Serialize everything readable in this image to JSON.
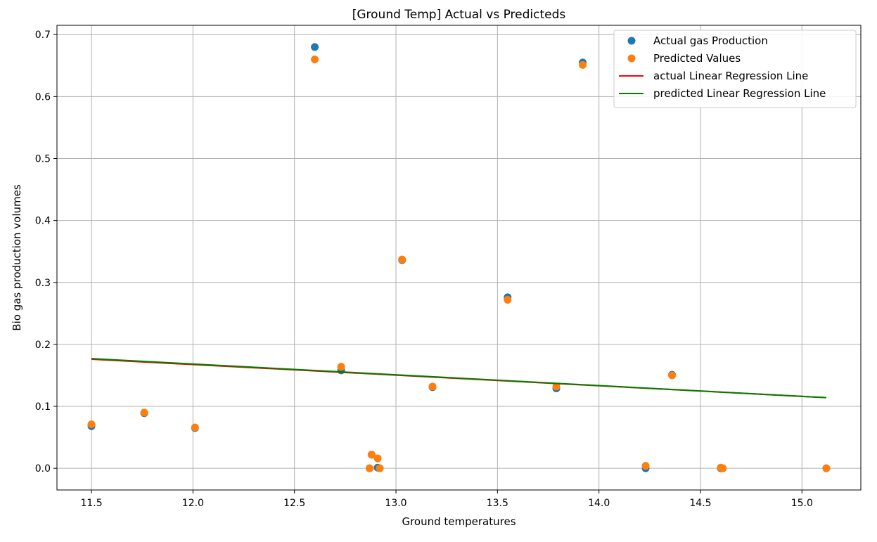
{
  "chart_data": {
    "type": "scatter",
    "title": "[Ground Temp] Actual vs Predicteds",
    "xlabel": "Ground temperatures",
    "ylabel": "Bio gas production volumes",
    "xlim": [
      11.33,
      15.29
    ],
    "ylim": [
      -0.035,
      0.715
    ],
    "xticks": [
      11.5,
      12.0,
      12.5,
      13.0,
      13.5,
      14.0,
      14.5,
      15.0
    ],
    "xtick_labels": [
      "11.5",
      "12.0",
      "12.5",
      "13.0",
      "13.5",
      "14.0",
      "14.5",
      "15.0"
    ],
    "yticks": [
      0.0,
      0.1,
      0.2,
      0.3,
      0.4,
      0.5,
      0.6,
      0.7
    ],
    "ytick_labels": [
      "0.0",
      "0.1",
      "0.2",
      "0.3",
      "0.4",
      "0.5",
      "0.6",
      "0.7"
    ],
    "grid": true,
    "legend_position": "top-right",
    "series": [
      {
        "name": "Actual gas Production",
        "kind": "scatter",
        "color": "#1f77b4",
        "points": [
          [
            11.5,
            0.068
          ],
          [
            11.76,
            0.089
          ],
          [
            12.01,
            0.065
          ],
          [
            12.6,
            0.68
          ],
          [
            12.73,
            0.158
          ],
          [
            12.87,
            0.0
          ],
          [
            12.88,
            0.022
          ],
          [
            12.91,
            0.001
          ],
          [
            12.92,
            0.0
          ],
          [
            13.03,
            0.336
          ],
          [
            13.18,
            0.131
          ],
          [
            13.55,
            0.276
          ],
          [
            13.79,
            0.129
          ],
          [
            13.92,
            0.655
          ],
          [
            14.23,
            0.0
          ],
          [
            14.36,
            0.151
          ],
          [
            14.6,
            0.0
          ],
          [
            14.61,
            0.0
          ],
          [
            15.12,
            0.0
          ]
        ]
      },
      {
        "name": "Predicted Values",
        "kind": "scatter",
        "color": "#ff7f0e",
        "points": [
          [
            11.5,
            0.071
          ],
          [
            11.76,
            0.09
          ],
          [
            12.01,
            0.066
          ],
          [
            12.6,
            0.66
          ],
          [
            12.73,
            0.164
          ],
          [
            12.87,
            0.0
          ],
          [
            12.88,
            0.022
          ],
          [
            12.91,
            0.016
          ],
          [
            12.92,
            0.0
          ],
          [
            13.03,
            0.337
          ],
          [
            13.18,
            0.132
          ],
          [
            13.55,
            0.272
          ],
          [
            13.79,
            0.132
          ],
          [
            13.92,
            0.651
          ],
          [
            14.23,
            0.004
          ],
          [
            14.36,
            0.15
          ],
          [
            14.6,
            0.001
          ],
          [
            14.61,
            0.0
          ],
          [
            15.12,
            0.0
          ]
        ]
      },
      {
        "name": "actual Linear Regression Line",
        "kind": "line",
        "color": "#ff0000",
        "points": [
          [
            11.5,
            0.176
          ],
          [
            15.12,
            0.114
          ]
        ]
      },
      {
        "name": "predicted Linear Regression Line",
        "kind": "line",
        "color": "#008000",
        "points": [
          [
            11.5,
            0.177
          ],
          [
            15.12,
            0.114
          ]
        ]
      }
    ]
  }
}
